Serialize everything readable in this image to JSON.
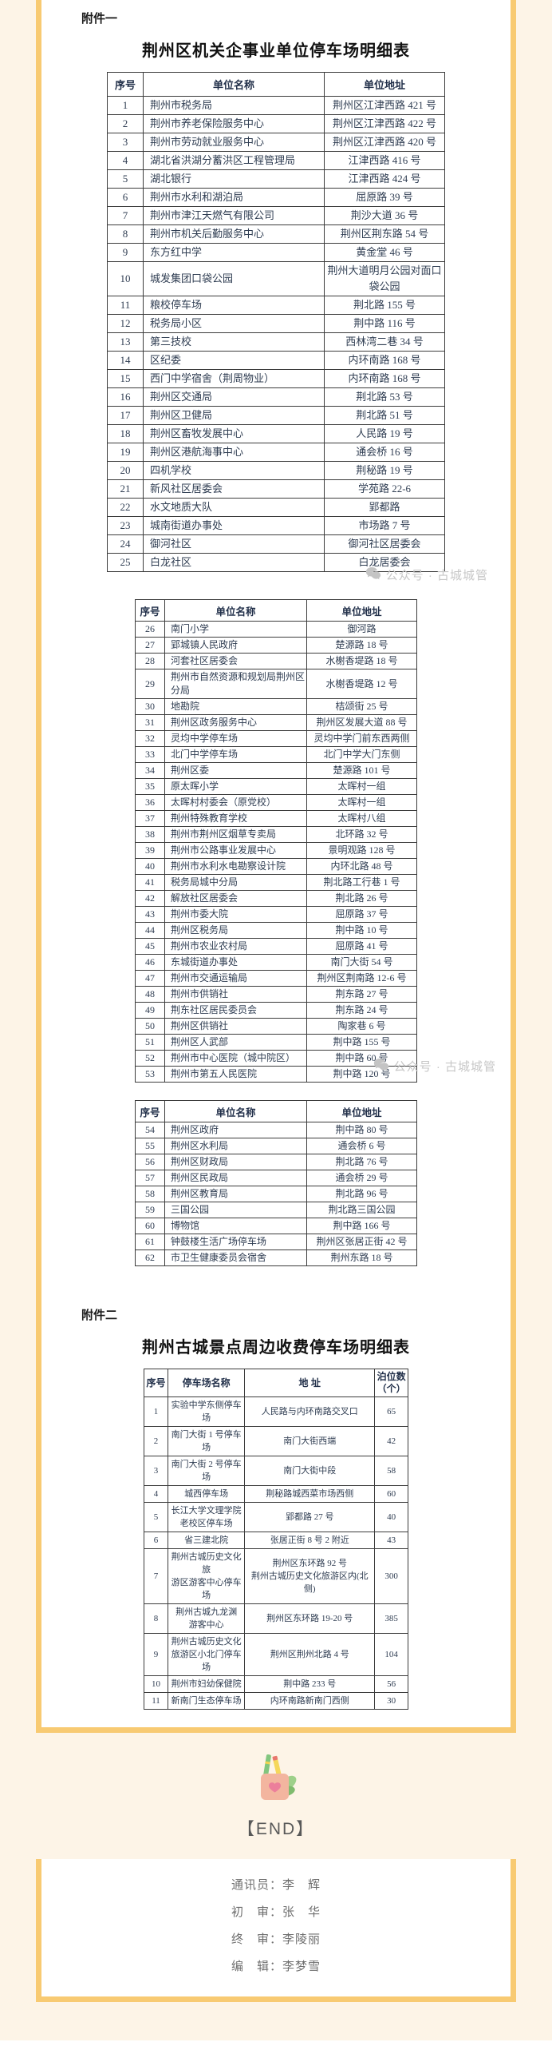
{
  "attachment1": {
    "label": "附件一",
    "title": "荆州区机关企事业单位停车场明细表",
    "tableA": {
      "headers": [
        "序号",
        "单位名称",
        "单位地址"
      ],
      "rows": [
        [
          "1",
          "荆州市税务局",
          "荆州区江津西路 421 号"
        ],
        [
          "2",
          "荆州市养老保险服务中心",
          "荆州区江津西路 422 号"
        ],
        [
          "3",
          "荆州市劳动就业服务中心",
          "荆州区江津西路 420 号"
        ],
        [
          "4",
          "湖北省洪湖分蓄洪区工程管理局",
          "江津西路 416 号"
        ],
        [
          "5",
          "湖北银行",
          "江津西路 424 号"
        ],
        [
          "6",
          "荆州市水利和湖泊局",
          "屈原路 39 号"
        ],
        [
          "7",
          "荆州市津江天燃气有限公司",
          "荆沙大道 36 号"
        ],
        [
          "8",
          "荆州市机关后勤服务中心",
          "荆州区荆东路 54 号"
        ],
        [
          "9",
          "东方红中学",
          "黄金堂 46 号"
        ],
        [
          "10",
          "城发集团口袋公园",
          "荆州大道明月公园对面口袋公园"
        ],
        [
          "11",
          "粮校停车场",
          "荆北路 155 号"
        ],
        [
          "12",
          "税务局小区",
          "荆中路 116 号"
        ],
        [
          "13",
          "第三技校",
          "西林湾二巷 34 号"
        ],
        [
          "14",
          "区纪委",
          "内环南路 168 号"
        ],
        [
          "15",
          "西门中学宿舍（荆周物业）",
          "内环南路 168 号"
        ],
        [
          "16",
          "荆州区交通局",
          "荆北路 53 号"
        ],
        [
          "17",
          "荆州区卫健局",
          "荆北路 51 号"
        ],
        [
          "18",
          "荆州区畜牧发展中心",
          "人民路 19 号"
        ],
        [
          "19",
          "荆州区港航海事中心",
          "通会桥 16 号"
        ],
        [
          "20",
          "四机学校",
          "荆秘路 19 号"
        ],
        [
          "21",
          "新风社区居委会",
          "学苑路 22-6"
        ],
        [
          "22",
          "水文地质大队",
          "郢都路"
        ],
        [
          "23",
          "城南街道办事处",
          "市场路 7 号"
        ],
        [
          "24",
          "御河社区",
          "御河社区居委会"
        ],
        [
          "25",
          "白龙社区",
          "白龙居委会"
        ]
      ]
    },
    "tableB": {
      "headers": [
        "序号",
        "单位名称",
        "单位地址"
      ],
      "rows": [
        [
          "26",
          "南门小学",
          "御河路"
        ],
        [
          "27",
          "郢城镇人民政府",
          "楚源路 18 号"
        ],
        [
          "28",
          "河套社区居委会",
          "水榭香堤路 18 号"
        ],
        [
          "29",
          "荆州市自然资源和规划局荆州区分局",
          "水榭香堤路 12 号"
        ],
        [
          "30",
          "地勘院",
          "桔颂街 25 号"
        ],
        [
          "31",
          "荆州区政务服务中心",
          "荆州区发展大道 88 号"
        ],
        [
          "32",
          "灵均中学停车场",
          "灵均中学门前东西两侧"
        ],
        [
          "33",
          "北门中学停车场",
          "北门中学大门东侧"
        ],
        [
          "34",
          "荆州区委",
          "楚源路 101 号"
        ],
        [
          "35",
          "原太晖小学",
          "太晖村一组"
        ],
        [
          "36",
          "太晖村村委会（原党校）",
          "太晖村一组"
        ],
        [
          "37",
          "荆州特殊教育学校",
          "太晖村八组"
        ],
        [
          "38",
          "荆州市荆州区烟草专卖局",
          "北环路 32 号"
        ],
        [
          "39",
          "荆州市公路事业发展中心",
          "景明观路 128 号"
        ],
        [
          "40",
          "荆州市水利水电勘察设计院",
          "内环北路 48 号"
        ],
        [
          "41",
          "税务局城中分局",
          "荆北路工行巷 1 号"
        ],
        [
          "42",
          "解放社区居委会",
          "荆北路 26 号"
        ],
        [
          "43",
          "荆州市委大院",
          "屈原路 37 号"
        ],
        [
          "44",
          "荆州区税务局",
          "荆中路 10 号"
        ],
        [
          "45",
          "荆州市农业农村局",
          "屈原路 41 号"
        ],
        [
          "46",
          "东城街道办事处",
          "南门大街 54 号"
        ],
        [
          "47",
          "荆州市交通运输局",
          "荆州区荆南路 12-6 号"
        ],
        [
          "48",
          "荆州市供销社",
          "荆东路 27 号"
        ],
        [
          "49",
          "荆东社区居民委员会",
          "荆东路 24 号"
        ],
        [
          "50",
          "荆州区供销社",
          "陶家巷 6 号"
        ],
        [
          "51",
          "荆州区人武部",
          "荆中路 155 号"
        ],
        [
          "52",
          "荆州市中心医院（城中院区）",
          "荆中路 60 号"
        ],
        [
          "53",
          "荆州市第五人民医院",
          "荆中路 120 号"
        ]
      ]
    },
    "tableC": {
      "headers": [
        "序号",
        "单位名称",
        "单位地址"
      ],
      "rows": [
        [
          "54",
          "荆州区政府",
          "荆中路 80 号"
        ],
        [
          "55",
          "荆州区水利局",
          "通会桥 6 号"
        ],
        [
          "56",
          "荆州区财政局",
          "荆北路 76 号"
        ],
        [
          "57",
          "荆州区民政局",
          "通会桥 29 号"
        ],
        [
          "58",
          "荆州区教育局",
          "荆北路 96 号"
        ],
        [
          "59",
          "三国公园",
          "荆北路三国公园"
        ],
        [
          "60",
          "博物馆",
          "荆中路 166 号"
        ],
        [
          "61",
          "钟鼓楼生活广场停车场",
          "荆州区张居正街 42 号"
        ],
        [
          "62",
          "市卫生健康委员会宿舍",
          "荆州东路 18 号"
        ]
      ]
    }
  },
  "attachment2": {
    "label": "附件二",
    "title": "荆州古城景点周边收费停车场明细表",
    "tableD": {
      "headers": [
        "序号",
        "停车场名称",
        "地  址",
        "泊位数（个）"
      ],
      "rows": [
        [
          "1",
          "实验中学东侧停车场",
          "人民路与内环南路交叉口",
          "65"
        ],
        [
          "2",
          "南门大街 1 号停车场",
          "南门大街西端",
          "42"
        ],
        [
          "3",
          "南门大街 2 号停车场",
          "南门大街中段",
          "58"
        ],
        [
          "4",
          "城西停车场",
          "荆秘路城西菜市场西侧",
          "60"
        ],
        [
          "5",
          "长江大学文理学院\n老校区停车场",
          "郢都路 27 号",
          "40"
        ],
        [
          "6",
          "省三建北院",
          "张居正街 8 号 2 附近",
          "43"
        ],
        [
          "7",
          "荆州古城历史文化旅\n游区游客中心停车场",
          "荆州区东环路 92 号\n荆州古城历史文化旅游区内(北侧)",
          "300"
        ],
        [
          "8",
          "荆州古城九龙渊\n游客中心",
          "荆州区东环路 19-20 号",
          "385"
        ],
        [
          "9",
          "荆州古城历史文化\n旅游区小北门停车场",
          "荆州区荆州北路 4 号",
          "104"
        ],
        [
          "10",
          "荆州市妇幼保健院",
          "荆中路 233 号",
          "56"
        ],
        [
          "11",
          "新南门生态停车场",
          "内环南路新南门西侧",
          "30"
        ]
      ]
    }
  },
  "watermark": {
    "text": "公众号 · 古城城管"
  },
  "end_marker": "【END】",
  "footer": {
    "lines": [
      "通讯员：李　辉",
      "初　审：张　华",
      "终　审：李陵丽",
      "编　辑：李梦雪"
    ]
  },
  "colors": {
    "cream_background": "#fdf4e7",
    "frame_border": "#f8ca72",
    "table_text": "#2f3d52",
    "watermark_gray": "#c7c7c7",
    "footer_gray": "#6e6e6e"
  }
}
